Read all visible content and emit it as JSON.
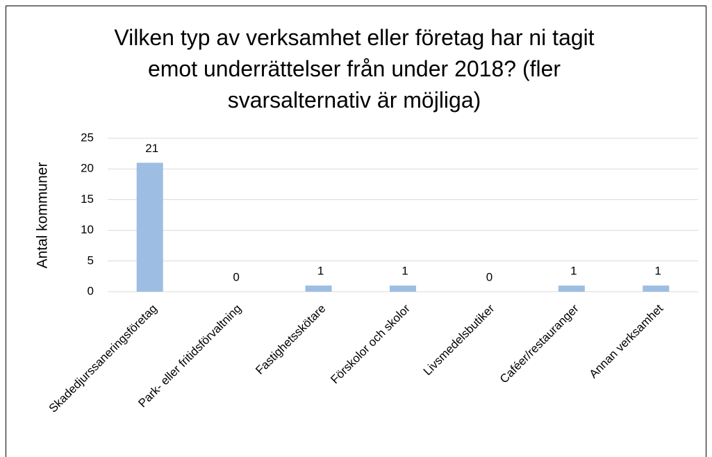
{
  "chart_data": {
    "type": "bar",
    "title": "Vilken typ av verksamhet eller företag har ni tagit emot underrättelser från under 2018? (fler svarsalternativ är möjliga)",
    "y_label": "Antal kommuner",
    "categories": [
      "Skadedjurssaneringsföretag",
      "Park- eller fritidsförvaltning",
      "Fastighetsskötare",
      "Förskolor och skolor",
      "Livsmedelsbutiker",
      "Caféer/restauranger",
      "Annan verksamhet"
    ],
    "values": [
      21,
      0,
      1,
      1,
      0,
      1,
      1
    ],
    "color": "#9dbde2",
    "ylim": [
      0,
      25
    ],
    "yticks": [
      0,
      5,
      10,
      15,
      20,
      25
    ],
    "grid": true
  }
}
